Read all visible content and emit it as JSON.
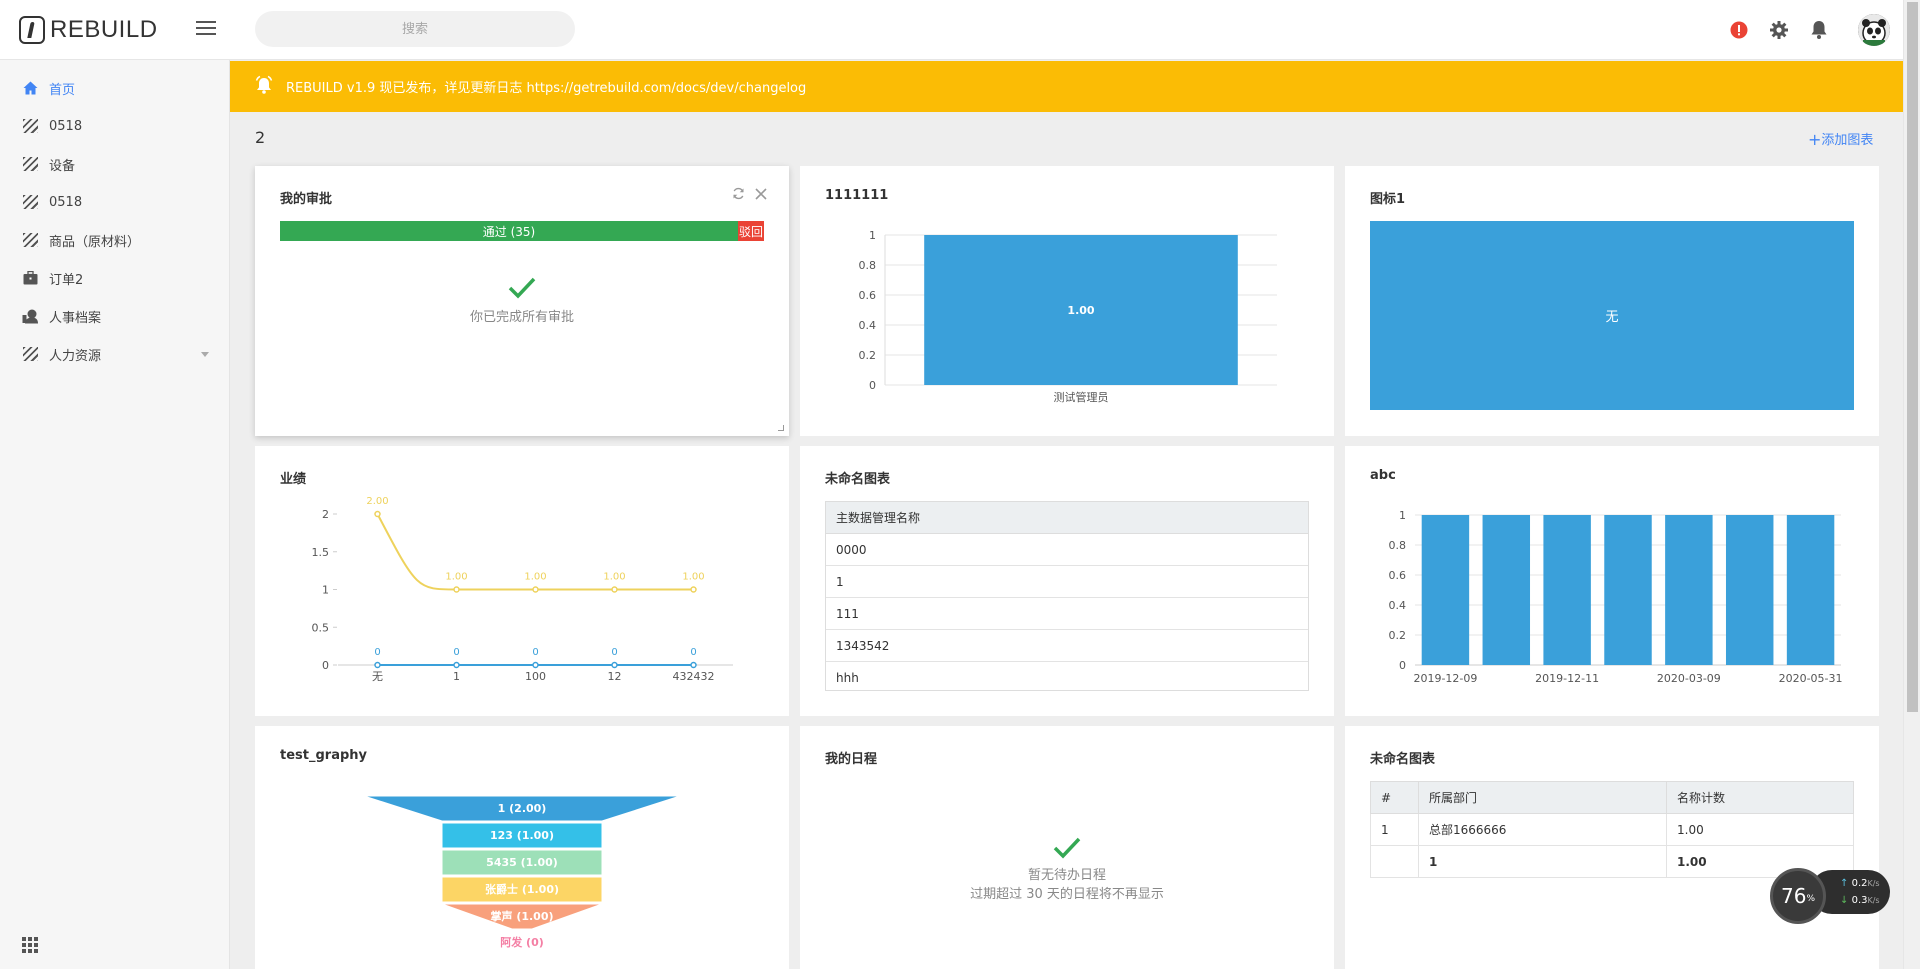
{
  "app": {
    "logo_text": "REBUILD"
  },
  "search": {
    "placeholder": "搜索"
  },
  "sidebar": {
    "items": [
      {
        "label": "首页",
        "icon": "home-icon",
        "active": true
      },
      {
        "label": "0518",
        "icon": "entity-icon"
      },
      {
        "label": "设备",
        "icon": "entity-icon"
      },
      {
        "label": "0518",
        "icon": "entity-icon"
      },
      {
        "label": "商品（原材料）",
        "icon": "entity-icon"
      },
      {
        "label": "订单2",
        "icon": "briefcase-icon"
      },
      {
        "label": "人事档案",
        "icon": "user-icon"
      },
      {
        "label": "人力资源",
        "icon": "entity-icon",
        "has_children": true
      }
    ]
  },
  "notice": {
    "text": "REBUILD v1.9 现已发布，详见更新日志 https://getrebuild.com/docs/dev/changelog"
  },
  "dashboard": {
    "title": "2",
    "add_chart_label": "添加图表"
  },
  "cards": {
    "approval": {
      "title": "我的审批",
      "pass_label": "通过 (35)",
      "reject_label": "驳回",
      "pass_count": 35,
      "done_text": "你已完成所有审批"
    },
    "chart_1111111": {
      "title": "1111111"
    },
    "chart_tubiao1": {
      "title": "图标1",
      "value_label": "无"
    },
    "chart_yeji": {
      "title": "业绩"
    },
    "table_unnamed": {
      "title": "未命名图表",
      "header": "主数据管理名称",
      "rows": [
        "0000",
        "1",
        "111",
        "1343542",
        "hhh"
      ]
    },
    "chart_abc": {
      "title": "abc"
    },
    "chart_funnel": {
      "title": "test_graphy"
    },
    "schedule": {
      "title": "我的日程",
      "empty_line1": "暂无待办日程",
      "empty_line2": "过期超过 30 天的日程将不再显示"
    },
    "pivot_unnamed": {
      "title": "未命名图表",
      "headers": [
        "#",
        "所属部门",
        "名称计数"
      ],
      "rows": [
        {
          "index": "1",
          "dept": "总部1666666",
          "count": "1.00"
        },
        {
          "index": "",
          "dept": "1",
          "count": "1.00"
        }
      ]
    }
  },
  "net_widget": {
    "percent": "76",
    "percent_unit": "%",
    "up": "0.2",
    "down": "0.3",
    "unit": "K/s"
  },
  "colors": {
    "accent": "#4285f4",
    "notice": "#fbbc05",
    "pass": "#34a853",
    "reject": "#ea4335",
    "bar": "#3aa0da"
  },
  "chart_data": [
    {
      "type": "bar",
      "title": "1111111",
      "categories": [
        "测试管理员"
      ],
      "values": [
        1.0
      ],
      "data_labels": [
        "1.00"
      ],
      "ylim": [
        0,
        1
      ],
      "yticks": [
        "1",
        "0.8",
        "0.6",
        "0.4",
        "0.2",
        "0"
      ]
    },
    {
      "type": "line",
      "title": "业绩",
      "categories": [
        "无",
        "1",
        "100",
        "12",
        "432432"
      ],
      "series": [
        {
          "values": [
            2,
            1,
            1,
            1,
            1
          ],
          "labels": [
            "2.00",
            "1.00",
            "1.00",
            "1.00",
            "1.00"
          ],
          "color": "#eed25c"
        },
        {
          "values": [
            0,
            0,
            0,
            0,
            0
          ],
          "labels": [
            "0",
            "0",
            "0",
            "0",
            "0"
          ],
          "color": "#3aa0da"
        }
      ],
      "ylim": [
        0,
        2
      ],
      "yticks": [
        "2",
        "1.5",
        "1",
        "0.5",
        "0"
      ]
    },
    {
      "type": "bar",
      "title": "abc",
      "categories": [
        "2019-12-09",
        "",
        "2019-12-11",
        "",
        "2020-03-09",
        "",
        "2020-05-31"
      ],
      "xtick_labels": [
        "2019-12-09",
        "2019-12-11",
        "2020-03-09",
        "2020-05-31"
      ],
      "values": [
        1,
        1,
        1,
        1,
        1,
        1,
        1
      ],
      "ylim": [
        0,
        1
      ],
      "yticks": [
        "1",
        "0.8",
        "0.6",
        "0.4",
        "0.2",
        "0"
      ]
    },
    {
      "type": "funnel",
      "title": "test_graphy",
      "labels": [
        "1 (2.00)",
        "123 (1.00)",
        "5435 (1.00)",
        "张爵士 (1.00)",
        "掌声 (1.00)",
        "阿发 (0)"
      ],
      "values": [
        2,
        1,
        1,
        1,
        1,
        0
      ],
      "colors": [
        "#3aa0da",
        "#34c0e8",
        "#9de0b8",
        "#fcd565",
        "#f8a07c",
        "#f47fa4"
      ]
    }
  ]
}
